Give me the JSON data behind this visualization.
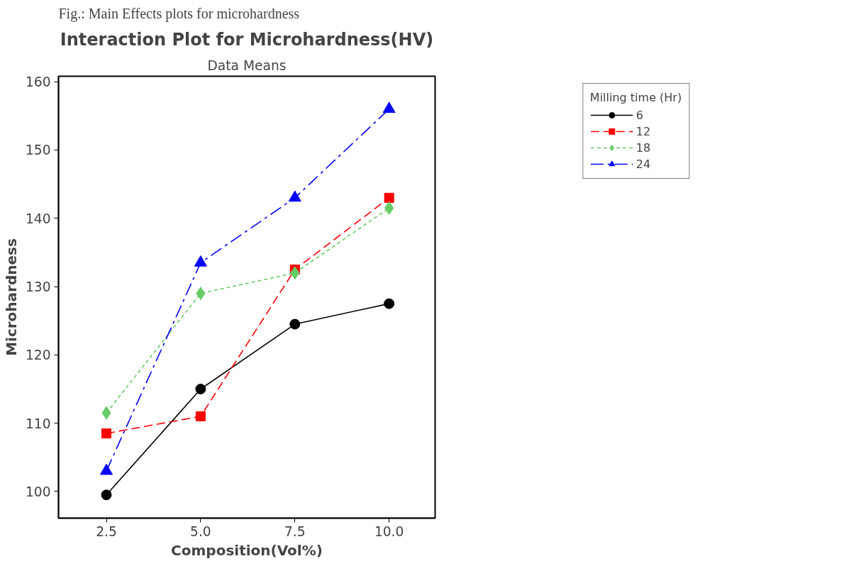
{
  "chart_data": {
    "type": "line",
    "title": "Interaction Plot for Microhardness(HV)",
    "subtitle": "Data Means",
    "xlabel": "Composition(Vol%)",
    "ylabel": "Microhardness",
    "legend_title": "Milling time (Hr)",
    "annotations": [
      "Fig.: Main Effects plots for microhardness"
    ],
    "x": [
      2.5,
      5.0,
      7.5,
      10.0
    ],
    "series": [
      {
        "name": "6",
        "color": "#000000",
        "marker": "circle",
        "line_style": "solid",
        "values": [
          99.5,
          115,
          124.5,
          127.5
        ]
      },
      {
        "name": "12",
        "color": "#ff0000",
        "marker": "square",
        "line_style": "dashed",
        "values": [
          108.5,
          111,
          132.5,
          143
        ]
      },
      {
        "name": "18",
        "color": "#66cc66",
        "marker": "diamond",
        "line_style": "dotted",
        "values": [
          111.5,
          129,
          132,
          141.5
        ]
      },
      {
        "name": "24",
        "color": "#0000ff",
        "marker": "triangle",
        "line_style": "dashdot",
        "values": [
          103,
          133.5,
          143,
          156
        ]
      }
    ],
    "xlim": [
      1.23,
      11.22
    ],
    "ylim": [
      96.1,
      160.8
    ],
    "xticks": [
      {
        "value": 2.5,
        "label": "2.5"
      },
      {
        "value": 5,
        "label": "5.0"
      },
      {
        "value": 7.5,
        "label": "7.5"
      },
      {
        "value": 10,
        "label": "10.0"
      }
    ],
    "yticks": [
      100,
      110,
      120,
      130,
      140,
      150,
      160
    ],
    "grid": false,
    "legend": "top right"
  }
}
